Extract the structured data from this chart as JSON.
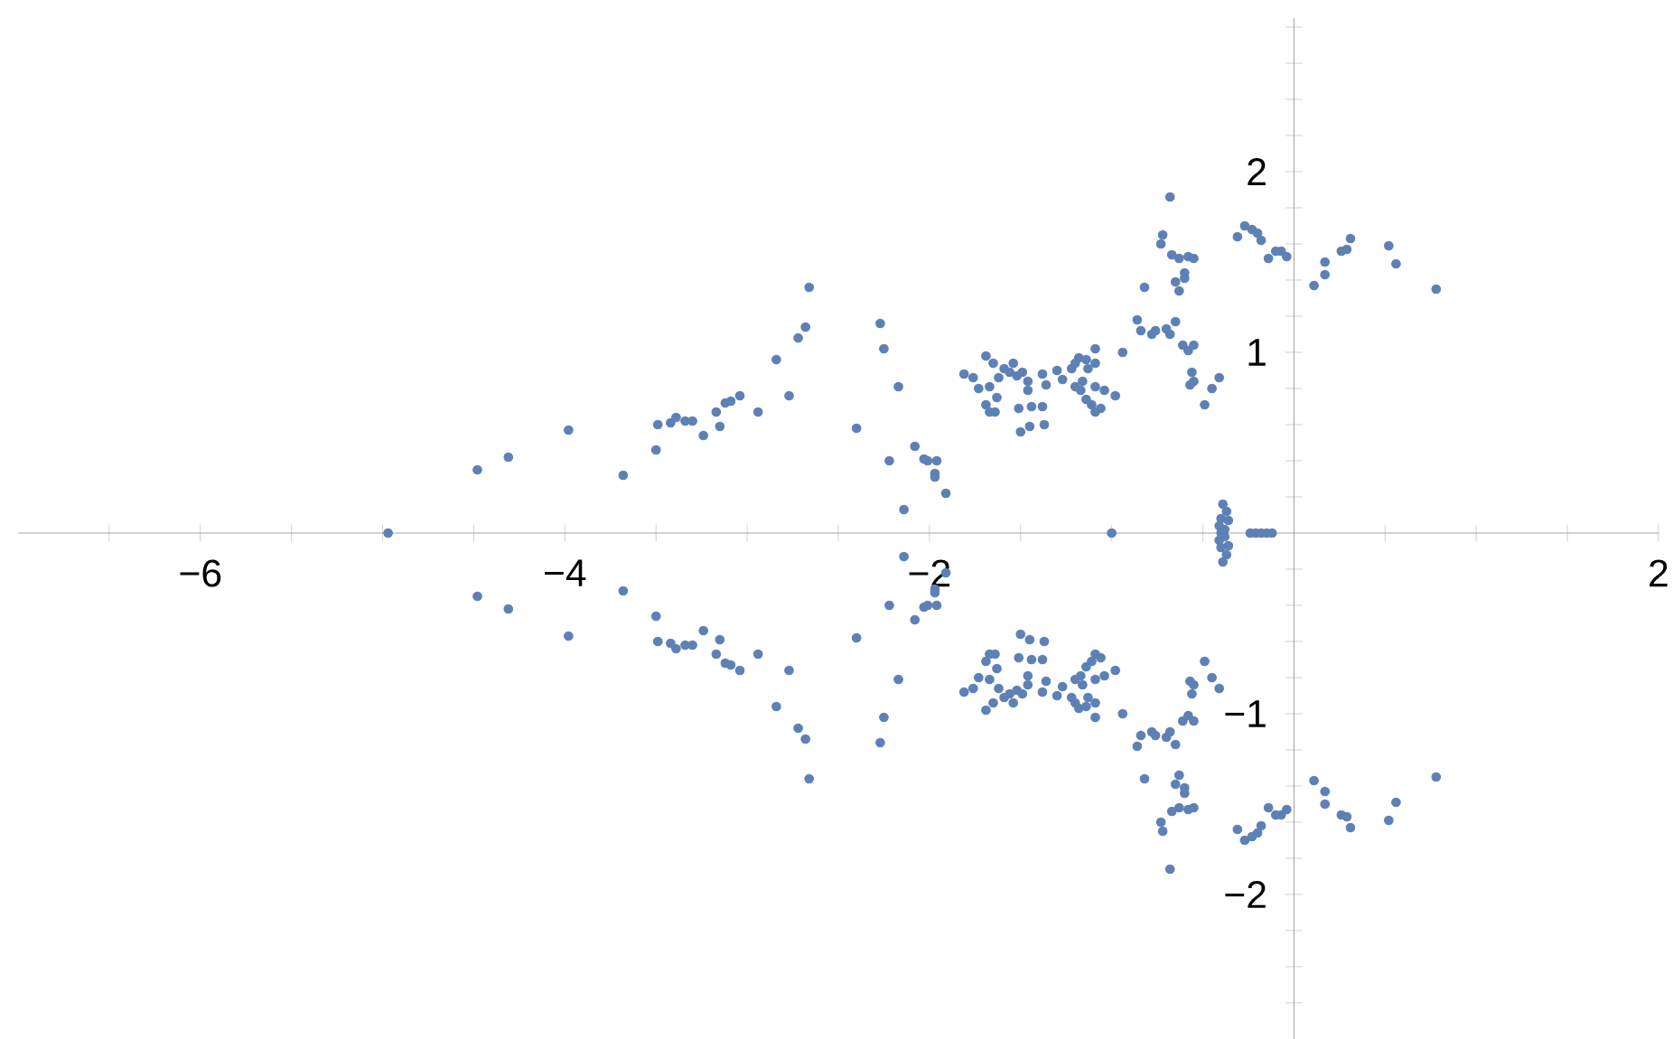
{
  "chart_data": {
    "type": "scatter",
    "color": "#5e81b5",
    "marker": "circle",
    "x": [
      -4.48,
      -4.31,
      -3.98,
      -3.68,
      -3.5,
      -3.49,
      -3.42,
      -3.39,
      -3.34,
      -3.3,
      -3.24,
      -3.17,
      -3.15,
      -3.12,
      -3.09,
      -3.04,
      -2.94,
      -2.84,
      -2.77,
      -2.72,
      -2.68,
      -2.66,
      -2.4,
      -2.27,
      -2.25,
      -2.17,
      -2.22,
      -2.14,
      -2.08,
      -2.03,
      -2.01,
      -1.96,
      -1.97,
      -1.97,
      -1.91,
      -1.81,
      -1.76,
      -1.73,
      -1.69,
      -1.65,
      -1.67,
      -1.63,
      -1.69,
      -1.67,
      -1.64,
      -1.62,
      -1.59,
      -1.56,
      -1.54,
      -1.52,
      -1.49,
      -1.46,
      -1.46,
      -1.51,
      -1.44,
      -1.38,
      -1.5,
      -1.45,
      -1.37,
      -1.38,
      -1.36,
      -1.3,
      -1.27,
      -1.22,
      -1.2,
      -1.18,
      -1.14,
      -1.13,
      -1.09,
      -1.09,
      -1.2,
      -1.16,
      -1.17,
      -1.14,
      -1.11,
      -1.09,
      -1.06,
      -1.09,
      -1.04,
      -0.98,
      -0.94,
      -0.86,
      -0.82,
      -0.84,
      -0.78,
      -0.76,
      -0.7,
      -0.68,
      -0.65,
      -0.68,
      -0.72,
      -0.73,
      -0.67,
      -0.63,
      -0.58,
      -0.55,
      -0.6,
      -0.65,
      -0.63,
      -0.6,
      -0.61,
      -0.58,
      -0.55,
      -0.56,
      -0.55,
      -0.57,
      -0.49,
      -0.45,
      -0.41,
      -0.31,
      -0.27,
      -0.23,
      -0.2,
      -0.18,
      -0.14,
      -0.1,
      -0.07,
      -0.04,
      0.11,
      0.17,
      0.17,
      0.26,
      0.31,
      0.29,
      0.52,
      0.56,
      0.78,
      -0.39,
      -0.37,
      -0.4,
      -0.36,
      -0.41,
      -0.38,
      -4.48,
      -4.31,
      -3.98,
      -3.68,
      -3.5,
      -3.49,
      -3.42,
      -3.39,
      -3.34,
      -3.3,
      -3.24,
      -3.17,
      -3.15,
      -3.12,
      -3.09,
      -3.04,
      -2.94,
      -2.84,
      -2.77,
      -2.72,
      -2.68,
      -2.66,
      -2.4,
      -2.27,
      -2.25,
      -2.17,
      -2.22,
      -2.14,
      -2.08,
      -2.03,
      -2.01,
      -1.96,
      -1.97,
      -1.97,
      -1.91,
      -1.81,
      -1.76,
      -1.73,
      -1.69,
      -1.65,
      -1.67,
      -1.63,
      -1.69,
      -1.67,
      -1.64,
      -1.62,
      -1.59,
      -1.56,
      -1.54,
      -1.52,
      -1.49,
      -1.46,
      -1.46,
      -1.51,
      -1.44,
      -1.38,
      -1.5,
      -1.45,
      -1.37,
      -1.38,
      -1.36,
      -1.3,
      -1.27,
      -1.22,
      -1.2,
      -1.18,
      -1.14,
      -1.13,
      -1.09,
      -1.09,
      -1.2,
      -1.16,
      -1.17,
      -1.14,
      -1.11,
      -1.09,
      -1.06,
      -1.09,
      -1.04,
      -0.98,
      -0.94,
      -0.86,
      -0.82,
      -0.84,
      -0.78,
      -0.76,
      -0.7,
      -0.68,
      -0.65,
      -0.68,
      -0.72,
      -0.73,
      -0.67,
      -0.63,
      -0.58,
      -0.55,
      -0.6,
      -0.65,
      -0.63,
      -0.6,
      -0.61,
      -0.58,
      -0.55,
      -0.56,
      -0.55,
      -0.57,
      -0.49,
      -0.45,
      -0.41,
      -0.31,
      -0.27,
      -0.23,
      -0.2,
      -0.18,
      -0.14,
      -0.1,
      -0.07,
      -0.04,
      0.11,
      0.17,
      0.17,
      0.26,
      0.31,
      0.29,
      0.52,
      0.56,
      0.78,
      -0.39,
      -0.37,
      -0.4,
      -0.36,
      -0.41,
      -0.38,
      -4.97,
      -1.0,
      -0.4,
      -0.24,
      -0.21,
      -0.18,
      -0.15,
      -0.12
    ],
    "values": [
      0.35,
      0.42,
      0.57,
      0.32,
      0.46,
      0.6,
      0.61,
      0.64,
      0.62,
      0.62,
      0.54,
      0.67,
      0.59,
      0.72,
      0.73,
      0.76,
      0.67,
      0.96,
      0.76,
      1.08,
      1.14,
      1.36,
      0.58,
      1.16,
      1.02,
      0.81,
      0.4,
      0.13,
      0.48,
      0.41,
      0.4,
      0.4,
      0.33,
      0.31,
      0.22,
      0.88,
      0.86,
      0.8,
      0.98,
      0.94,
      0.81,
      0.75,
      0.71,
      0.67,
      0.67,
      0.86,
      0.91,
      0.89,
      0.94,
      0.87,
      0.89,
      0.84,
      0.79,
      0.69,
      0.7,
      0.7,
      0.56,
      0.59,
      0.6,
      0.88,
      0.82,
      0.9,
      0.85,
      0.91,
      0.94,
      0.97,
      0.96,
      0.91,
      1.02,
      0.94,
      0.81,
      0.84,
      0.79,
      0.74,
      0.71,
      0.67,
      0.69,
      0.81,
      0.79,
      0.76,
      1.0,
      1.18,
      1.36,
      1.12,
      1.1,
      1.12,
      1.13,
      1.1,
      1.17,
      1.86,
      1.65,
      1.6,
      1.54,
      1.52,
      1.53,
      1.52,
      1.44,
      1.39,
      1.34,
      1.41,
      1.04,
      1.01,
      1.04,
      0.89,
      0.84,
      0.82,
      0.71,
      0.8,
      0.86,
      1.64,
      1.7,
      1.68,
      1.66,
      1.62,
      1.52,
      1.56,
      1.56,
      1.53,
      1.37,
      1.43,
      1.5,
      1.56,
      1.63,
      1.57,
      1.59,
      1.49,
      1.35,
      0.16,
      0.12,
      0.08,
      0.07,
      0.04,
      0.02,
      -0.35,
      -0.42,
      -0.57,
      -0.32,
      -0.46,
      -0.6,
      -0.61,
      -0.64,
      -0.62,
      -0.62,
      -0.54,
      -0.67,
      -0.59,
      -0.72,
      -0.73,
      -0.76,
      -0.67,
      -0.96,
      -0.76,
      -1.08,
      -1.14,
      -1.36,
      -0.58,
      -1.16,
      -1.02,
      -0.81,
      -0.4,
      -0.13,
      -0.48,
      -0.41,
      -0.4,
      -0.4,
      -0.33,
      -0.31,
      -0.22,
      -0.88,
      -0.86,
      -0.8,
      -0.98,
      -0.94,
      -0.81,
      -0.75,
      -0.71,
      -0.67,
      -0.67,
      -0.86,
      -0.91,
      -0.89,
      -0.94,
      -0.87,
      -0.89,
      -0.84,
      -0.79,
      -0.69,
      -0.7,
      -0.7,
      -0.56,
      -0.59,
      -0.6,
      -0.88,
      -0.82,
      -0.9,
      -0.85,
      -0.91,
      -0.94,
      -0.97,
      -0.96,
      -0.91,
      -1.02,
      -0.94,
      -0.81,
      -0.84,
      -0.79,
      -0.74,
      -0.71,
      -0.67,
      -0.69,
      -0.81,
      -0.79,
      -0.76,
      -1.0,
      -1.18,
      -1.36,
      -1.12,
      -1.1,
      -1.12,
      -1.13,
      -1.1,
      -1.17,
      -1.86,
      -1.65,
      -1.6,
      -1.54,
      -1.52,
      -1.53,
      -1.52,
      -1.44,
      -1.39,
      -1.34,
      -1.41,
      -1.04,
      -1.01,
      -1.04,
      -0.89,
      -0.84,
      -0.82,
      -0.71,
      -0.8,
      -0.86,
      -1.64,
      -1.7,
      -1.68,
      -1.66,
      -1.62,
      -1.52,
      -1.56,
      -1.56,
      -1.53,
      -1.37,
      -1.43,
      -1.5,
      -1.56,
      -1.63,
      -1.57,
      -1.59,
      -1.49,
      -1.35,
      -0.16,
      -0.12,
      -0.08,
      -0.07,
      -0.04,
      -0.02,
      0,
      0,
      0,
      0,
      0,
      0,
      0,
      0
    ],
    "xlim": [
      -7,
      2
    ],
    "ylim": [
      -2.8,
      2.85
    ],
    "xticks": [
      {
        "value": -6.5,
        "label": null
      },
      {
        "value": -6,
        "label": "−6"
      },
      {
        "value": -5.5,
        "label": null
      },
      {
        "value": -5,
        "label": null
      },
      {
        "value": -4.5,
        "label": null
      },
      {
        "value": -4,
        "label": "−4"
      },
      {
        "value": -3.5,
        "label": null
      },
      {
        "value": -3,
        "label": null
      },
      {
        "value": -2.5,
        "label": null
      },
      {
        "value": -2,
        "label": "−2"
      },
      {
        "value": -1.5,
        "label": null
      },
      {
        "value": -1,
        "label": null
      },
      {
        "value": -0.5,
        "label": null
      },
      {
        "value": 0.5,
        "label": null
      },
      {
        "value": 1,
        "label": null
      },
      {
        "value": 1.5,
        "label": null
      },
      2
    ],
    "yticks": [
      {
        "value": -2.6,
        "label": null
      },
      {
        "value": -2.4,
        "label": null
      },
      {
        "value": -2.2,
        "label": null
      },
      {
        "value": -2,
        "label": "−2"
      },
      {
        "value": -1.8,
        "label": null
      },
      {
        "value": -1.6,
        "label": null
      },
      {
        "value": -1.4,
        "label": null
      },
      {
        "value": -1.2,
        "label": null
      },
      {
        "value": -1,
        "label": "−1"
      },
      {
        "value": -0.8,
        "label": null
      },
      {
        "value": -0.6,
        "label": null
      },
      {
        "value": -0.4,
        "label": null
      },
      {
        "value": -0.2,
        "label": null
      },
      {
        "value": 0.2,
        "label": null
      },
      {
        "value": 0.4,
        "label": null
      },
      {
        "value": 0.6,
        "label": null
      },
      {
        "value": 0.8,
        "label": null
      },
      1,
      {
        "value": 1.2,
        "label": null
      },
      {
        "value": 1.4,
        "label": null
      },
      {
        "value": 1.6,
        "label": null
      },
      {
        "value": 1.8,
        "label": null
      },
      2,
      {
        "value": 2.2,
        "label": null
      },
      {
        "value": 2.4,
        "label": null
      },
      {
        "value": 2.6,
        "label": null
      },
      {
        "value": 2.8,
        "label": null
      }
    ]
  }
}
